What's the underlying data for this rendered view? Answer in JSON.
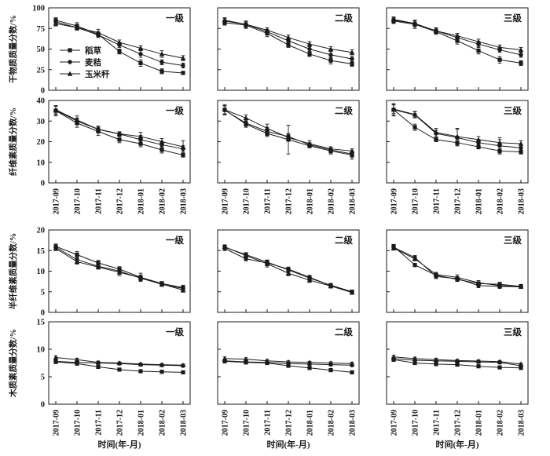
{
  "figure": {
    "background": "#ffffff",
    "line_color": "#1a1a1a",
    "x_axis_title": "时间(年-月)",
    "column_panel_labels": [
      "一级",
      "二级",
      "三级"
    ],
    "row_y_labels": [
      "干物质质量分数/%",
      "纤维素质量分数/%",
      "半纤维素质量分数/%",
      "木质素质量分数/%"
    ],
    "legend": [
      {
        "label": "稻草",
        "marker": "square"
      },
      {
        "label": "麦秸",
        "marker": "circle"
      },
      {
        "label": "玉米秆",
        "marker": "triangle"
      }
    ]
  },
  "chart_data": [
    {
      "type": "line",
      "row_index": 0,
      "col_index": 0,
      "panel_label": "一级",
      "ylabel": "干物质质量分数/%",
      "ylim": [
        0,
        100
      ],
      "yticks": [
        0,
        25,
        50,
        75,
        100
      ],
      "x": [
        "2017-09",
        "2017-10",
        "2017-11",
        "2017-12",
        "2018-01",
        "2018-02",
        "2018-03"
      ],
      "series": [
        {
          "name": "稻草",
          "marker": "square",
          "values": [
            85,
            78,
            68,
            47,
            33,
            23,
            21
          ],
          "err": [
            3,
            4,
            3,
            3,
            4,
            3,
            2
          ]
        },
        {
          "name": "麦秸",
          "marker": "circle",
          "values": [
            83,
            76,
            67,
            55,
            44,
            34,
            30
          ],
          "err": [
            3,
            3,
            3,
            3,
            4,
            3,
            3
          ]
        },
        {
          "name": "玉米秆",
          "marker": "triangle",
          "values": [
            81,
            76,
            70,
            58,
            51,
            44,
            39
          ],
          "err": [
            3,
            3,
            4,
            3,
            3,
            4,
            3
          ]
        }
      ]
    },
    {
      "type": "line",
      "row_index": 0,
      "col_index": 1,
      "panel_label": "二级",
      "ylabel": "干物质质量分数/%",
      "ylim": [
        0,
        100
      ],
      "yticks": [
        0,
        25,
        50,
        75,
        100
      ],
      "x": [
        "2017-09",
        "2017-10",
        "2017-11",
        "2017-12",
        "2018-01",
        "2018-02",
        "2018-03"
      ],
      "series": [
        {
          "name": "稻草",
          "marker": "square",
          "values": [
            82,
            79,
            69,
            55,
            44,
            36,
            32
          ],
          "err": [
            3,
            4,
            4,
            3,
            3,
            4,
            3
          ]
        },
        {
          "name": "麦秸",
          "marker": "circle",
          "values": [
            84,
            80,
            71,
            60,
            50,
            43,
            38
          ],
          "err": [
            3,
            3,
            3,
            3,
            3,
            4,
            3
          ]
        },
        {
          "name": "玉米秆",
          "marker": "triangle",
          "values": [
            85,
            80,
            73,
            64,
            56,
            50,
            46
          ],
          "err": [
            3,
            4,
            3,
            3,
            3,
            3,
            3
          ]
        }
      ]
    },
    {
      "type": "line",
      "row_index": 0,
      "col_index": 2,
      "panel_label": "三级",
      "ylabel": "干物质质量分数/%",
      "ylim": [
        0,
        100
      ],
      "yticks": [
        0,
        25,
        50,
        75,
        100
      ],
      "x": [
        "2017-09",
        "2017-10",
        "2017-11",
        "2017-12",
        "2018-01",
        "2018-02",
        "2018-03"
      ],
      "series": [
        {
          "name": "稻草",
          "marker": "square",
          "values": [
            84,
            80,
            71,
            60,
            48,
            37,
            33
          ],
          "err": [
            3,
            5,
            3,
            4,
            4,
            4,
            3
          ]
        },
        {
          "name": "麦秸",
          "marker": "circle",
          "values": [
            85,
            81,
            72,
            64,
            56,
            49,
            43
          ],
          "err": [
            3,
            4,
            3,
            3,
            3,
            3,
            3
          ]
        },
        {
          "name": "玉米秆",
          "marker": "triangle",
          "values": [
            86,
            81,
            72,
            66,
            59,
            52,
            49
          ],
          "err": [
            3,
            3,
            4,
            3,
            3,
            3,
            3
          ]
        }
      ]
    },
    {
      "type": "line",
      "row_index": 1,
      "col_index": 0,
      "panel_label": "一级",
      "ylabel": "纤维素质量分数/%",
      "ylim": [
        0,
        40
      ],
      "yticks": [
        0,
        10,
        20,
        30,
        40
      ],
      "x": [
        "2017-09",
        "2017-10",
        "2017-11",
        "2017-12",
        "2018-01",
        "2018-02",
        "2018-03"
      ],
      "series": [
        {
          "name": "稻草",
          "marker": "square",
          "values": [
            35,
            29,
            25,
            21,
            19,
            16,
            13.5
          ],
          "err": [
            2.5,
            2,
            2,
            1.5,
            1.5,
            1.5,
            1
          ]
        },
        {
          "name": "麦秸",
          "marker": "circle",
          "values": [
            35.2,
            30,
            26,
            23.7,
            21,
            18.5,
            16.5
          ],
          "err": [
            2,
            1.5,
            1.5,
            1,
            2,
            1.5,
            1.5
          ]
        },
        {
          "name": "玉米秆",
          "marker": "triangle",
          "values": [
            35.5,
            30.5,
            26,
            23.8,
            22.5,
            20,
            17.5
          ],
          "err": [
            2,
            2,
            1.5,
            1,
            2,
            1.5,
            3
          ]
        }
      ]
    },
    {
      "type": "line",
      "row_index": 1,
      "col_index": 1,
      "panel_label": "二级",
      "ylabel": "纤维素质量分数/%",
      "ylim": [
        0,
        40
      ],
      "yticks": [
        0,
        10,
        20,
        30,
        40
      ],
      "x": [
        "2017-09",
        "2017-10",
        "2017-11",
        "2017-12",
        "2018-01",
        "2018-02",
        "2018-03"
      ],
      "series": [
        {
          "name": "稻草",
          "marker": "square",
          "values": [
            35.5,
            28.5,
            24,
            21,
            18,
            15.5,
            13.5
          ],
          "err": [
            2.5,
            1.5,
            1.5,
            7,
            1,
            1.5,
            2
          ]
        },
        {
          "name": "麦秸",
          "marker": "circle",
          "values": [
            35.3,
            29,
            25,
            22.5,
            18.5,
            16,
            14
          ],
          "err": [
            2,
            1.5,
            2,
            1.5,
            1,
            1.5,
            1.5
          ]
        },
        {
          "name": "玉米秆",
          "marker": "triangle",
          "values": [
            35.5,
            31.5,
            26.5,
            22,
            19,
            16.5,
            15.5
          ],
          "err": [
            2,
            1.5,
            2,
            1.5,
            1.5,
            1,
            1
          ]
        }
      ]
    },
    {
      "type": "line",
      "row_index": 1,
      "col_index": 2,
      "panel_label": "三级",
      "ylabel": "纤维素质量分数/%",
      "ylim": [
        0,
        40
      ],
      "yticks": [
        0,
        10,
        20,
        30,
        40
      ],
      "x": [
        "2017-09",
        "2017-10",
        "2017-11",
        "2017-12",
        "2018-01",
        "2018-02",
        "2018-03"
      ],
      "series": [
        {
          "name": "稻草",
          "marker": "square",
          "values": [
            35.5,
            27,
            21,
            19.5,
            17.5,
            15.5,
            15
          ],
          "err": [
            3,
            1.5,
            1,
            1.5,
            1,
            1,
            1
          ]
        },
        {
          "name": "麦秸",
          "marker": "circle",
          "values": [
            35.5,
            33,
            24,
            22,
            19.5,
            18,
            17
          ],
          "err": [
            2.5,
            1.5,
            1.5,
            4,
            1.5,
            4,
            1.5
          ]
        },
        {
          "name": "玉米秆",
          "marker": "triangle",
          "values": [
            35.8,
            33.2,
            24.5,
            22.5,
            21,
            19.5,
            19
          ],
          "err": [
            2,
            1.5,
            2,
            4,
            1.5,
            1.5,
            1.5
          ]
        }
      ]
    },
    {
      "type": "line",
      "row_index": 2,
      "col_index": 0,
      "panel_label": "一级",
      "ylabel": "半纤维素质量分数/%",
      "ylim": [
        0,
        20
      ],
      "yticks": [
        0,
        5,
        10,
        15,
        20
      ],
      "x": [
        "2017-09",
        "2017-10",
        "2017-11",
        "2017-12",
        "2018-01",
        "2018-02",
        "2018-03"
      ],
      "series": [
        {
          "name": "稻草",
          "marker": "square",
          "values": [
            16,
            14,
            12,
            10.5,
            8.5,
            7,
            6
          ],
          "err": [
            0.6,
            0.8,
            0.6,
            0.6,
            1,
            0.5,
            0.6
          ]
        },
        {
          "name": "麦秸",
          "marker": "circle",
          "values": [
            15.8,
            12.8,
            11.2,
            10,
            8.3,
            6.8,
            5.8
          ],
          "err": [
            0.5,
            0.6,
            0.5,
            0.6,
            0.6,
            0.5,
            0.5
          ]
        },
        {
          "name": "玉米秆",
          "marker": "triangle",
          "values": [
            15.5,
            12.3,
            11,
            9.7,
            8.4,
            6.9,
            5.4
          ],
          "err": [
            0.5,
            0.6,
            0.5,
            0.8,
            0.6,
            0.5,
            0.5
          ]
        }
      ]
    },
    {
      "type": "line",
      "row_index": 2,
      "col_index": 1,
      "panel_label": "二级",
      "ylabel": "半纤维素质量分数/%",
      "ylim": [
        0,
        20
      ],
      "yticks": [
        0,
        5,
        10,
        15,
        20
      ],
      "x": [
        "2017-09",
        "2017-10",
        "2017-11",
        "2017-12",
        "2018-01",
        "2018-02",
        "2018-03"
      ],
      "series": [
        {
          "name": "稻草",
          "marker": "square",
          "values": [
            15.8,
            14,
            12.2,
            10.3,
            8.3,
            6.6,
            5
          ],
          "err": [
            0.5,
            0.5,
            0.5,
            0.6,
            0.5,
            0.4,
            0.4
          ]
        },
        {
          "name": "麦秸",
          "marker": "circle",
          "values": [
            15.5,
            13,
            12,
            10.5,
            8.5,
            6.5,
            5
          ],
          "err": [
            0.5,
            0.5,
            0.7,
            0.5,
            0.5,
            0.4,
            0.4
          ]
        },
        {
          "name": "玉米秆",
          "marker": "triangle",
          "values": [
            15.9,
            13.8,
            11.8,
            9.5,
            7.8,
            6.4,
            4.8
          ],
          "err": [
            0.5,
            0.5,
            0.8,
            0.6,
            0.5,
            0.5,
            0.4
          ]
        }
      ]
    },
    {
      "type": "line",
      "row_index": 2,
      "col_index": 2,
      "panel_label": "三级",
      "ylabel": "半纤维素质量分数/%",
      "ylim": [
        0,
        20
      ],
      "yticks": [
        0,
        5,
        10,
        15,
        20
      ],
      "x": [
        "2017-09",
        "2017-10",
        "2017-11",
        "2017-12",
        "2018-01",
        "2018-02",
        "2018-03"
      ],
      "series": [
        {
          "name": "稻草",
          "marker": "square",
          "values": [
            16,
            11.5,
            9,
            8,
            7,
            6.8,
            6.3
          ],
          "err": [
            0.5,
            0.4,
            0.5,
            0.5,
            0.4,
            0.5,
            0.5
          ]
        },
        {
          "name": "麦秸",
          "marker": "circle",
          "values": [
            15.8,
            13.3,
            8.7,
            8.2,
            6.5,
            6.3,
            6.2
          ],
          "err": [
            0.5,
            0.5,
            0.5,
            0.5,
            0.5,
            0.5,
            0.4
          ]
        },
        {
          "name": "玉米秆",
          "marker": "triangle",
          "values": [
            15.6,
            13,
            9.2,
            8.5,
            7.2,
            6.5,
            6.3
          ],
          "err": [
            0.5,
            0.5,
            0.5,
            0.6,
            0.5,
            0.4,
            0.4
          ]
        }
      ]
    },
    {
      "type": "line",
      "row_index": 3,
      "col_index": 0,
      "panel_label": "一级",
      "ylabel": "木质素质量分数/%",
      "ylim": [
        0,
        15
      ],
      "yticks": [
        0,
        5,
        10,
        15
      ],
      "x": [
        "2017-09",
        "2017-10",
        "2017-11",
        "2017-12",
        "2018-01",
        "2018-02",
        "2018-03"
      ],
      "series": [
        {
          "name": "稻草",
          "marker": "square",
          "values": [
            7.7,
            7.4,
            6.8,
            6.3,
            6.0,
            5.9,
            5.8
          ],
          "err": [
            0.3,
            0.3,
            0.25,
            0.25,
            0.2,
            0.2,
            0.2
          ]
        },
        {
          "name": "麦秸",
          "marker": "circle",
          "values": [
            7.8,
            7.6,
            7.5,
            7.4,
            7.2,
            7.1,
            7.0
          ],
          "err": [
            0.25,
            0.25,
            0.2,
            0.2,
            0.2,
            0.2,
            0.2
          ]
        },
        {
          "name": "玉米秆",
          "marker": "triangle",
          "values": [
            8.5,
            8.1,
            7.6,
            7.5,
            7.3,
            7.2,
            7.1
          ],
          "err": [
            0.3,
            0.25,
            0.25,
            0.2,
            0.2,
            0.2,
            0.2
          ]
        }
      ]
    },
    {
      "type": "line",
      "row_index": 3,
      "col_index": 1,
      "panel_label": "二级",
      "ylabel": "木质素质量分数/%",
      "ylim": [
        0,
        15
      ],
      "yticks": [
        0,
        5,
        10,
        15
      ],
      "x": [
        "2017-09",
        "2017-10",
        "2017-11",
        "2017-12",
        "2018-01",
        "2018-02",
        "2018-03"
      ],
      "series": [
        {
          "name": "稻草",
          "marker": "square",
          "values": [
            7.8,
            7.6,
            7.5,
            7.0,
            6.6,
            6.2,
            5.8
          ],
          "err": [
            0.25,
            0.25,
            0.25,
            0.2,
            0.2,
            0.2,
            0.2
          ]
        },
        {
          "name": "麦秸",
          "marker": "circle",
          "values": [
            7.9,
            7.7,
            7.6,
            7.4,
            7.3,
            7.2,
            7.1
          ],
          "err": [
            0.25,
            0.2,
            0.2,
            0.2,
            0.2,
            0.2,
            0.2
          ]
        },
        {
          "name": "玉米秆",
          "marker": "triangle",
          "values": [
            8.3,
            8.2,
            7.9,
            7.7,
            7.6,
            7.5,
            7.4
          ],
          "err": [
            0.3,
            0.25,
            0.25,
            0.2,
            0.2,
            0.2,
            0.2
          ]
        }
      ]
    },
    {
      "type": "line",
      "row_index": 3,
      "col_index": 2,
      "panel_label": "三级",
      "ylabel": "木质素质量分数/%",
      "ylim": [
        0,
        15
      ],
      "yticks": [
        0,
        5,
        10,
        15
      ],
      "x": [
        "2017-09",
        "2017-10",
        "2017-11",
        "2017-12",
        "2018-01",
        "2018-02",
        "2018-03"
      ],
      "series": [
        {
          "name": "稻草",
          "marker": "square",
          "values": [
            8.1,
            7.5,
            7.3,
            7.2,
            6.9,
            6.7,
            6.6
          ],
          "err": [
            0.3,
            0.25,
            0.25,
            0.2,
            0.2,
            0.2,
            0.2
          ]
        },
        {
          "name": "麦秸",
          "marker": "circle",
          "values": [
            8.3,
            8.0,
            7.9,
            7.8,
            7.7,
            7.6,
            7.0
          ],
          "err": [
            0.25,
            0.25,
            0.2,
            0.2,
            0.2,
            0.2,
            0.2
          ]
        },
        {
          "name": "玉米秆",
          "marker": "triangle",
          "values": [
            8.6,
            8.3,
            8.1,
            7.95,
            7.85,
            7.75,
            7.3
          ],
          "err": [
            0.3,
            0.25,
            0.25,
            0.2,
            0.2,
            0.2,
            0.2
          ]
        }
      ]
    }
  ]
}
